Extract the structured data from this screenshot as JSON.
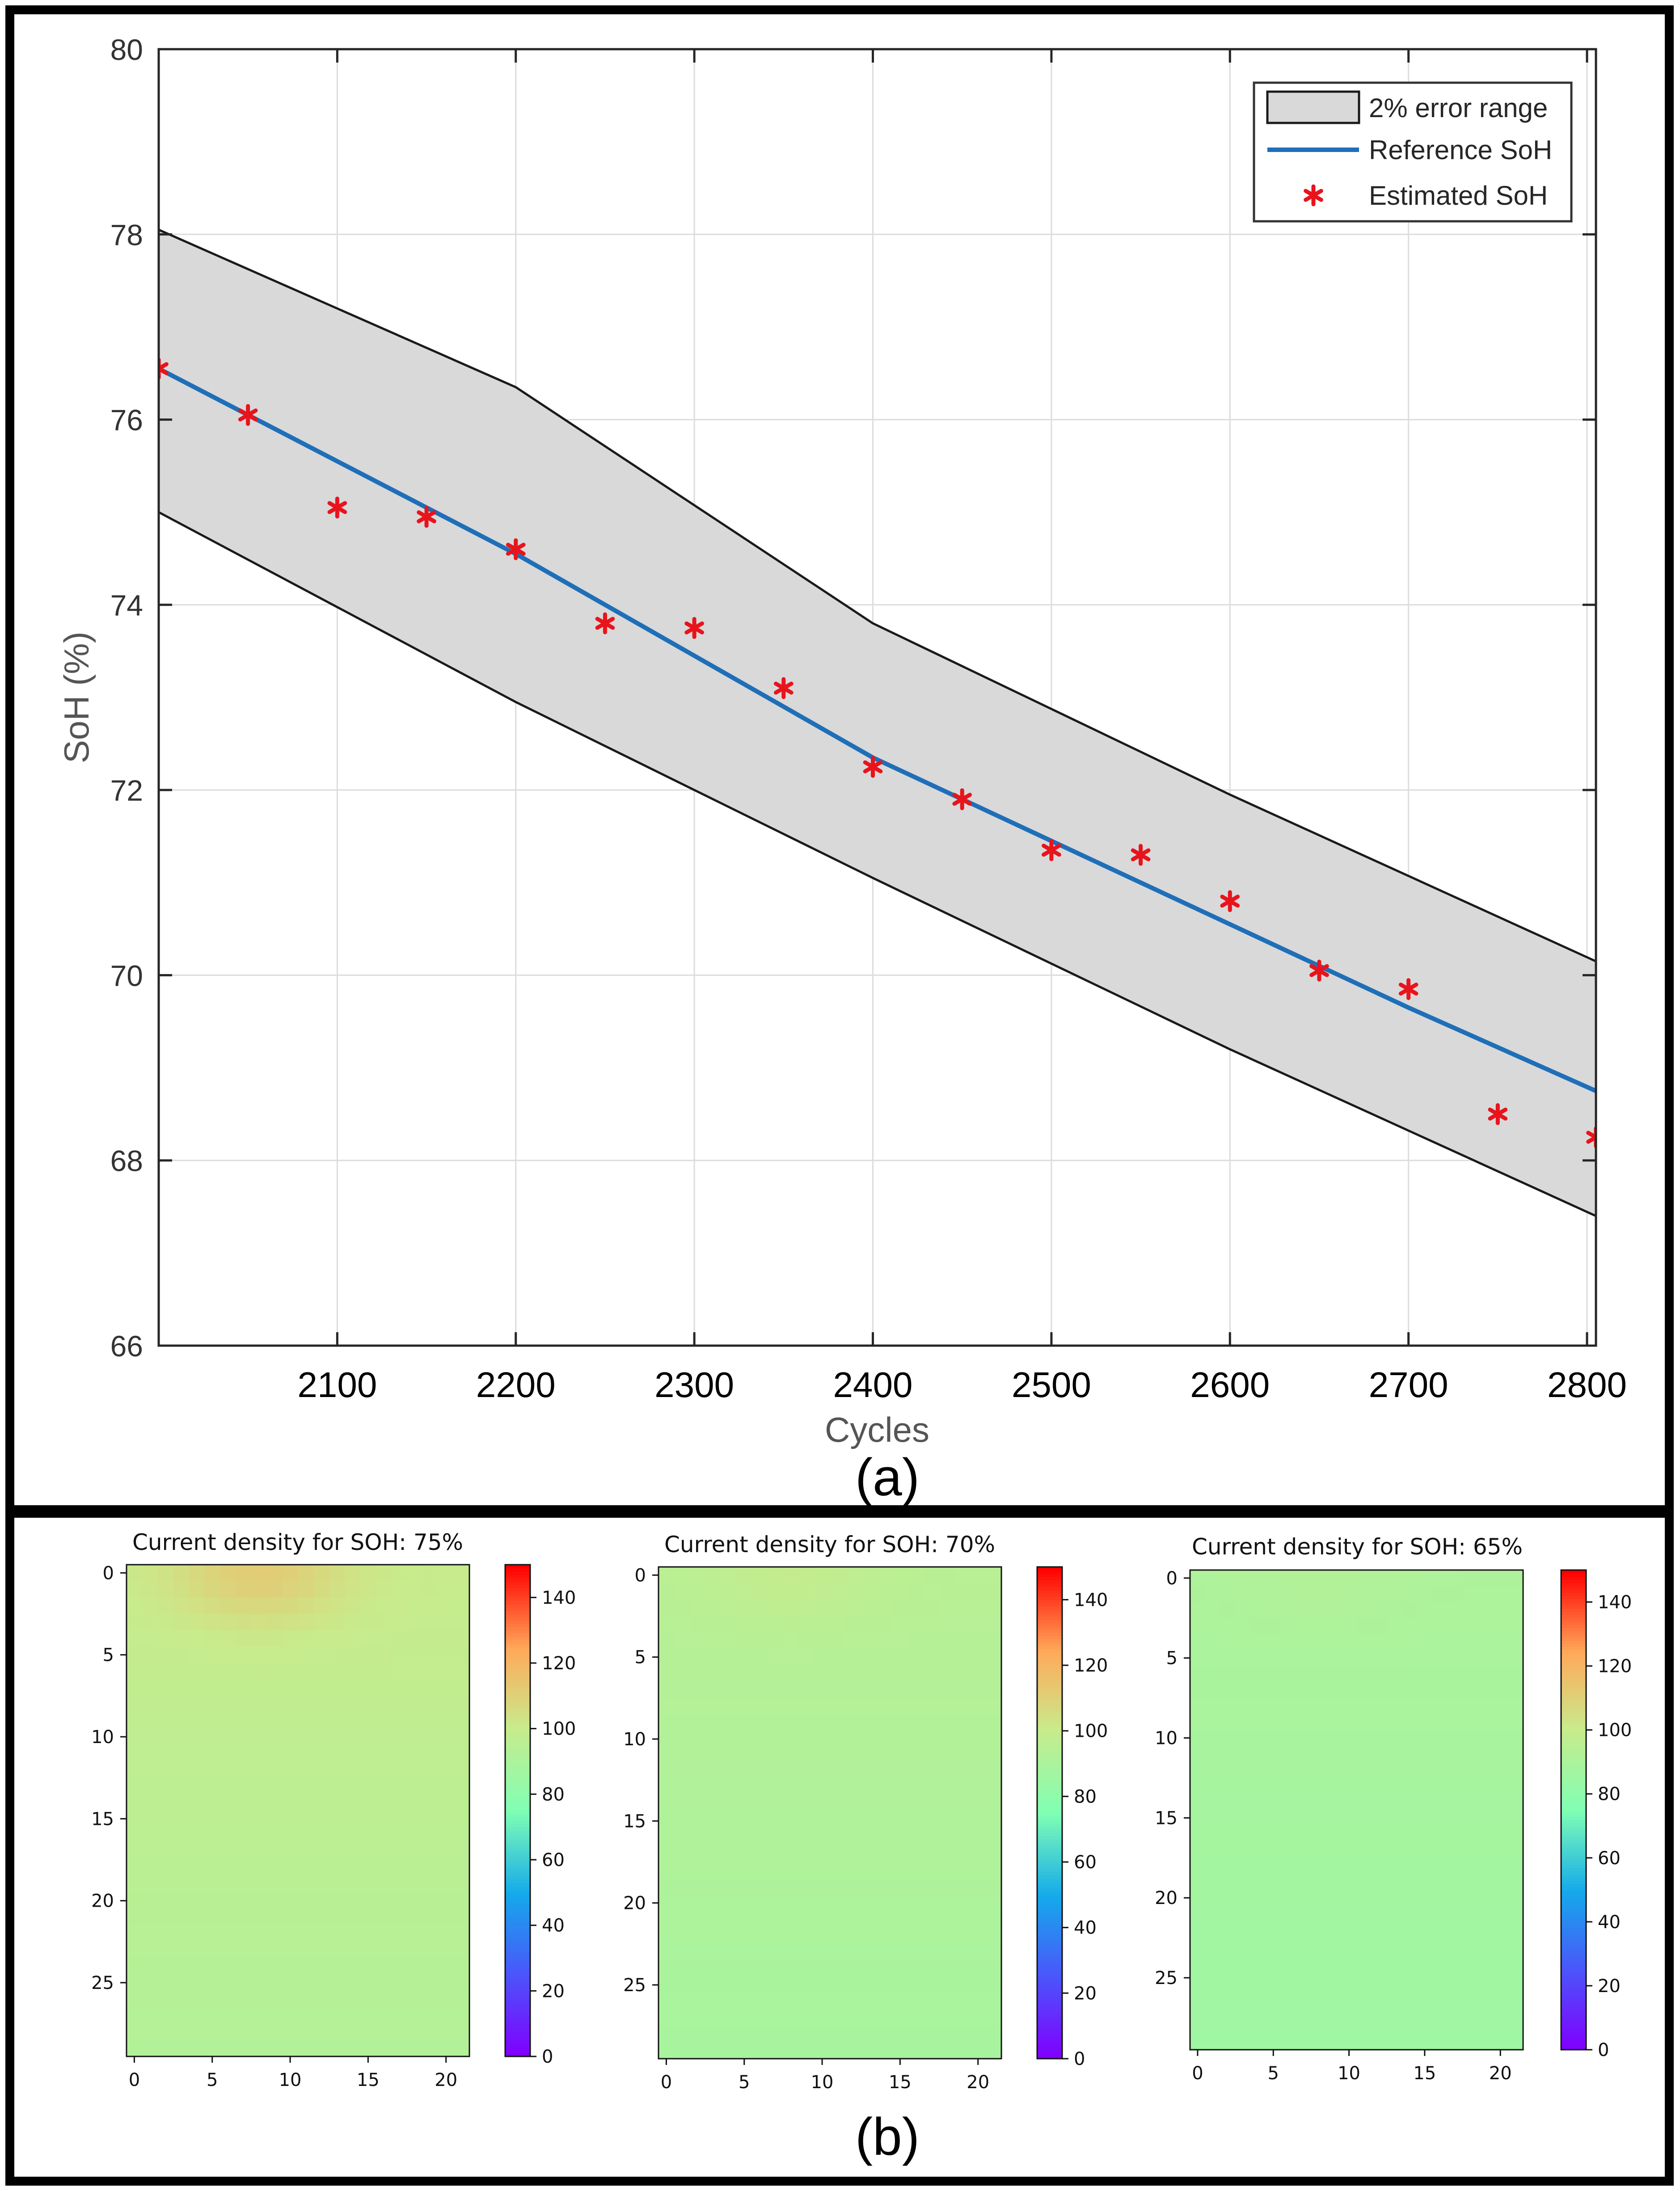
{
  "chart_data": [
    {
      "type": "line",
      "panel_label": "(a)",
      "xlabel": "Cycles",
      "ylabel": "SoH (%)",
      "xlim": [
        2000,
        2805
      ],
      "ylim": [
        66,
        80
      ],
      "grid": true,
      "x_ticks": [
        "2100",
        "2200",
        "2300",
        "2400",
        "2500",
        "2600",
        "2700",
        "2800"
      ],
      "y_ticks": [
        "66",
        "68",
        "70",
        "72",
        "74",
        "76",
        "78",
        "80"
      ],
      "legend": {
        "position": "top-right",
        "entries": [
          "2% error range",
          "Reference SoH",
          "Estimated SoH"
        ]
      },
      "band": {
        "name": "2% error range",
        "x": [
          2000,
          2805
        ],
        "upper_curve": [
          [
            2000,
            78.05
          ],
          [
            2200,
            76.35
          ],
          [
            2400,
            73.8
          ],
          [
            2600,
            71.95
          ],
          [
            2805,
            70.15
          ]
        ],
        "lower_curve": [
          [
            2000,
            75.0
          ],
          [
            2200,
            72.95
          ],
          [
            2400,
            71.05
          ],
          [
            2600,
            69.2
          ],
          [
            2805,
            67.4
          ]
        ]
      },
      "series": [
        {
          "name": "Reference SoH",
          "color": "#1f6fb8",
          "points": [
            [
              2000,
              76.55
            ],
            [
              2100,
              75.55
            ],
            [
              2200,
              74.55
            ],
            [
              2300,
              73.45
            ],
            [
              2400,
              72.35
            ],
            [
              2500,
              71.45
            ],
            [
              2600,
              70.55
            ],
            [
              2700,
              69.65
            ],
            [
              2805,
              68.75
            ]
          ]
        },
        {
          "name": "Estimated SoH",
          "color": "#e8141c",
          "x": [
            2000,
            2050,
            2100,
            2150,
            2200,
            2250,
            2300,
            2350,
            2400,
            2450,
            2500,
            2550,
            2600,
            2650,
            2700,
            2750,
            2805
          ],
          "values": [
            76.55,
            76.05,
            75.05,
            74.95,
            74.6,
            73.8,
            73.75,
            73.1,
            72.25,
            71.9,
            71.35,
            71.3,
            70.8,
            70.05,
            69.85,
            68.5,
            68.25
          ]
        }
      ]
    },
    {
      "type": "heatmap",
      "panel_label": "(b)",
      "title": "Current density for SOH: 75%",
      "colormap": "rainbow",
      "clim": [
        0,
        150
      ],
      "x_ticks": [
        "0",
        "5",
        "10",
        "15",
        "20"
      ],
      "y_ticks": [
        "0",
        "5",
        "10",
        "15",
        "20",
        "25"
      ],
      "colorbar_ticks": [
        "0",
        "20",
        "40",
        "60",
        "80",
        "100",
        "120",
        "140"
      ],
      "grid_shape": [
        30,
        22
      ],
      "top_hotspot": {
        "value": 112,
        "center_col": 8,
        "center_row": 0
      },
      "top_value": 100,
      "bottom_value": 93
    },
    {
      "type": "heatmap",
      "title": "Current density for SOH: 70%",
      "colormap": "rainbow",
      "clim": [
        0,
        150
      ],
      "x_ticks": [
        "0",
        "5",
        "10",
        "15",
        "20"
      ],
      "y_ticks": [
        "0",
        "5",
        "10",
        "15",
        "20",
        "25"
      ],
      "colorbar_ticks": [
        "0",
        "20",
        "40",
        "60",
        "80",
        "100",
        "120",
        "140"
      ],
      "grid_shape": [
        30,
        22
      ],
      "top_hotspot": {
        "value": 99,
        "center_col": 8,
        "center_row": 0
      },
      "top_value": 95,
      "bottom_value": 89
    },
    {
      "type": "heatmap",
      "title": "Current density for SOH: 65%",
      "colormap": "rainbow",
      "clim": [
        0,
        150
      ],
      "x_ticks": [
        "0",
        "5",
        "10",
        "15",
        "20"
      ],
      "y_ticks": [
        "0",
        "5",
        "10",
        "15",
        "20",
        "25"
      ],
      "colorbar_ticks": [
        "0",
        "20",
        "40",
        "60",
        "80",
        "100",
        "120",
        "140"
      ],
      "grid_shape": [
        30,
        22
      ],
      "top_hotspot": {
        "value": 93,
        "center_col": 8,
        "center_row": 0
      },
      "top_value": 91,
      "bottom_value": 86
    }
  ]
}
